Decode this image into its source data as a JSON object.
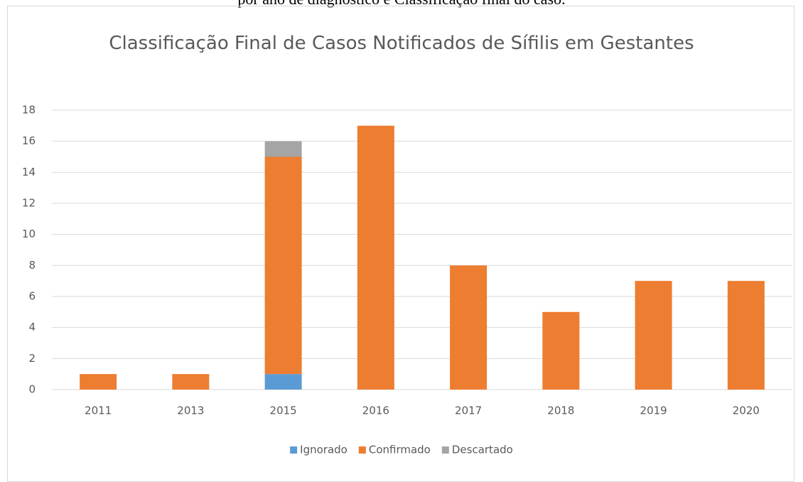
{
  "caption": "por ano de diagnóstico e Classificação final do caso.",
  "chart_data": {
    "type": "stacked_bar",
    "title": "Classificação Final de Casos Notificados de Sífilis em Gestantes",
    "categories": [
      "2011",
      "2013",
      "2015",
      "2016",
      "2017",
      "2018",
      "2019",
      "2020"
    ],
    "series": [
      {
        "name": "Ignorado",
        "color": "#5b9bd5",
        "values": [
          0,
          0,
          1,
          0,
          0,
          0,
          0,
          0
        ]
      },
      {
        "name": "Confirmado",
        "color": "#ed7d31",
        "values": [
          1,
          1,
          14,
          17,
          8,
          5,
          7,
          7
        ]
      },
      {
        "name": "Descartado",
        "color": "#a5a5a5",
        "values": [
          0,
          0,
          1,
          0,
          0,
          0,
          0,
          0
        ]
      }
    ],
    "ylim": [
      0,
      18
    ],
    "yticks": [
      0,
      2,
      4,
      6,
      8,
      10,
      12,
      14,
      16,
      18
    ],
    "grid": true,
    "legend": "bottom"
  }
}
